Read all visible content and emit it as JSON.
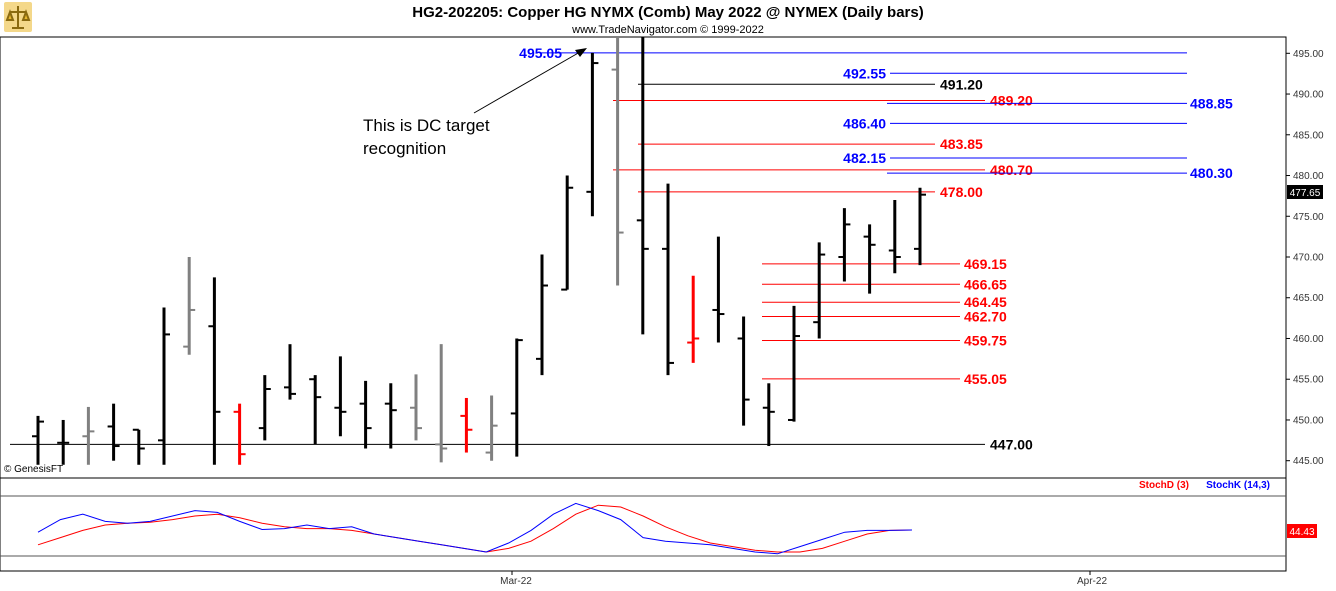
{
  "header": {
    "title": "HG2-202205:  Copper HG NYMX (Comb) May 2022 @ NYMEX  (Daily bars)",
    "subtitle": "www.TradeNavigator.com © 1999-2022",
    "logo_icon": "genesis-logo-icon"
  },
  "watermark": "© GenesisFT",
  "annotation": "This is DC target recognition",
  "x_axis": {
    "ticks": [
      "Mar-22",
      "Apr-22"
    ]
  },
  "price_panel": {
    "ylim": [
      443,
      497
    ],
    "y_ticks": [
      "495.00",
      "490.00",
      "485.00",
      "480.00",
      "475.00",
      "470.00",
      "465.00",
      "460.00",
      "455.00",
      "450.00",
      "445.00"
    ],
    "last_price": "477.65"
  },
  "levels": [
    {
      "label": "495.05",
      "value": 495.05,
      "color": "#0000ff",
      "label_side": "left"
    },
    {
      "label": "492.55",
      "value": 492.55,
      "color": "#0000ff"
    },
    {
      "label": "491.20",
      "value": 491.2,
      "color": "#000000"
    },
    {
      "label": "489.20",
      "value": 489.2,
      "color": "#ff0000"
    },
    {
      "label": "488.85",
      "value": 488.85,
      "color": "#0000ff"
    },
    {
      "label": "486.40",
      "value": 486.4,
      "color": "#0000ff"
    },
    {
      "label": "483.85",
      "value": 483.85,
      "color": "#ff0000"
    },
    {
      "label": "482.15",
      "value": 482.15,
      "color": "#0000ff"
    },
    {
      "label": "480.70",
      "value": 480.7,
      "color": "#ff0000"
    },
    {
      "label": "480.30",
      "value": 480.3,
      "color": "#0000ff"
    },
    {
      "label": "478.00",
      "value": 478.0,
      "color": "#ff0000"
    },
    {
      "label": "469.15",
      "value": 469.15,
      "color": "#ff0000"
    },
    {
      "label": "466.65",
      "value": 466.65,
      "color": "#ff0000"
    },
    {
      "label": "464.45",
      "value": 464.45,
      "color": "#ff0000"
    },
    {
      "label": "462.70",
      "value": 462.7,
      "color": "#ff0000"
    },
    {
      "label": "459.75",
      "value": 459.75,
      "color": "#ff0000"
    },
    {
      "label": "455.05",
      "value": 455.05,
      "color": "#ff0000"
    },
    {
      "label": "447.00",
      "value": 447.0,
      "color": "#000000"
    }
  ],
  "stoch_panel": {
    "legend": [
      {
        "label": "StochD (3)",
        "color": "#ff0000"
      },
      {
        "label": "StochK (14,3)",
        "color": "#0000ff"
      }
    ],
    "last_value": "44.43"
  },
  "chart_data": [
    {
      "type": "ohlc",
      "title": "HG2-202205:  Copper HG NYMX (Comb) May 2022 @ NYMEX  (Daily bars)",
      "ylim": [
        443,
        497
      ],
      "colors": {
        "black": "#000000",
        "gray": "#808080",
        "red": "#ff0000",
        "green": "#00cc00"
      },
      "bars": [
        {
          "o": 448.0,
          "h": 450.5,
          "l": 444.5,
          "c": 449.8,
          "color": "black"
        },
        {
          "o": 447.2,
          "h": 450.0,
          "l": 444.5,
          "c": 447.2,
          "color": "black"
        },
        {
          "o": 448.0,
          "h": 451.6,
          "l": 444.5,
          "c": 448.6,
          "color": "gray"
        },
        {
          "o": 449.2,
          "h": 452.0,
          "l": 445.0,
          "c": 446.8,
          "color": "black"
        },
        {
          "o": 448.8,
          "h": 448.8,
          "l": 444.5,
          "c": 446.5,
          "color": "black"
        },
        {
          "o": 447.5,
          "h": 463.8,
          "l": 444.5,
          "c": 460.5,
          "color": "black"
        },
        {
          "o": 459.0,
          "h": 470.0,
          "l": 458.0,
          "c": 463.5,
          "color": "gray"
        },
        {
          "o": 461.5,
          "h": 467.5,
          "l": 444.5,
          "c": 451.0,
          "color": "black"
        },
        {
          "o": 451.0,
          "h": 452.0,
          "l": 444.5,
          "c": 445.8,
          "color": "red"
        },
        {
          "o": 449.0,
          "h": 455.5,
          "l": 447.5,
          "c": 453.8,
          "color": "black"
        },
        {
          "o": 454.0,
          "h": 459.3,
          "l": 452.5,
          "c": 453.2,
          "color": "black"
        },
        {
          "o": 455.0,
          "h": 455.5,
          "l": 447.0,
          "c": 452.8,
          "color": "black"
        },
        {
          "o": 451.5,
          "h": 457.8,
          "l": 448.0,
          "c": 451.0,
          "color": "black"
        },
        {
          "o": 452.0,
          "h": 454.8,
          "l": 446.5,
          "c": 449.0,
          "color": "black"
        },
        {
          "o": 452.0,
          "h": 454.5,
          "l": 446.5,
          "c": 451.2,
          "color": "black"
        },
        {
          "o": 451.5,
          "h": 455.6,
          "l": 447.5,
          "c": 449.0,
          "color": "gray"
        },
        {
          "o": 447.0,
          "h": 459.3,
          "l": 444.8,
          "c": 446.5,
          "color": "gray"
        },
        {
          "o": 450.5,
          "h": 452.7,
          "l": 446.0,
          "c": 448.8,
          "color": "red"
        },
        {
          "o": 446.0,
          "h": 453.0,
          "l": 445.0,
          "c": 449.3,
          "color": "gray"
        },
        {
          "o": 450.8,
          "h": 460.0,
          "l": 445.5,
          "c": 459.8,
          "color": "black"
        },
        {
          "o": 457.5,
          "h": 470.3,
          "l": 455.5,
          "c": 466.5,
          "color": "black"
        },
        {
          "o": 466.0,
          "h": 480.0,
          "l": 466.0,
          "c": 478.5,
          "color": "black"
        },
        {
          "o": 478.0,
          "h": 495.05,
          "l": 475.0,
          "c": 493.8,
          "color": "black"
        },
        {
          "o": 493.0,
          "h": 497.0,
          "l": 466.5,
          "c": 473.0,
          "color": "gray"
        },
        {
          "o": 474.5,
          "h": 497.0,
          "l": 460.5,
          "c": 471.0,
          "color": "black"
        },
        {
          "o": 471.0,
          "h": 479.0,
          "l": 455.5,
          "c": 457.0,
          "color": "black"
        },
        {
          "o": 459.5,
          "h": 467.7,
          "l": 457.0,
          "c": 460.0,
          "color": "red"
        },
        {
          "o": 463.5,
          "h": 472.5,
          "l": 459.5,
          "c": 463.0,
          "color": "black"
        },
        {
          "o": 460.0,
          "h": 462.7,
          "l": 449.3,
          "c": 452.5,
          "color": "black"
        },
        {
          "o": 451.5,
          "h": 454.5,
          "l": 446.8,
          "c": 451.0,
          "color": "black"
        },
        {
          "o": 450.0,
          "h": 464.0,
          "l": 449.8,
          "c": 460.3,
          "color": "black"
        },
        {
          "o": 462.0,
          "h": 471.8,
          "l": 460.0,
          "c": 470.3,
          "color": "black"
        },
        {
          "o": 470.0,
          "h": 476.0,
          "l": 467.0,
          "c": 474.0,
          "color": "black"
        },
        {
          "o": 472.5,
          "h": 474.0,
          "l": 465.5,
          "c": 471.5,
          "color": "black"
        },
        {
          "o": 470.8,
          "h": 477.0,
          "l": 468.0,
          "c": 470.0,
          "color": "black"
        },
        {
          "o": 471.0,
          "h": 478.5,
          "l": 469.0,
          "c": 477.65,
          "color": "black"
        }
      ]
    },
    {
      "type": "line",
      "title": "",
      "ylim": [
        0,
        100
      ],
      "series": [
        {
          "name": "StochD (3)",
          "color": "#ff0000",
          "values": [
            28,
            36,
            44,
            50,
            52,
            53,
            56,
            60,
            62,
            58,
            52,
            48,
            46,
            46,
            44,
            40,
            36,
            32,
            28,
            24,
            20,
            24,
            32,
            46,
            62,
            72,
            70,
            60,
            48,
            38,
            30,
            26,
            22,
            20,
            20,
            24,
            32,
            40,
            44,
            44.43
          ]
        },
        {
          "name": "StochK (14,3)",
          "color": "#0000ff",
          "values": [
            42,
            56,
            62,
            54,
            52,
            54,
            60,
            66,
            64,
            54,
            45,
            46,
            50,
            46,
            48,
            40,
            36,
            32,
            28,
            24,
            20,
            30,
            44,
            62,
            74,
            66,
            56,
            36,
            32,
            30,
            28,
            24,
            20,
            18,
            26,
            34,
            42,
            44,
            44,
            44.43
          ]
        }
      ]
    }
  ]
}
